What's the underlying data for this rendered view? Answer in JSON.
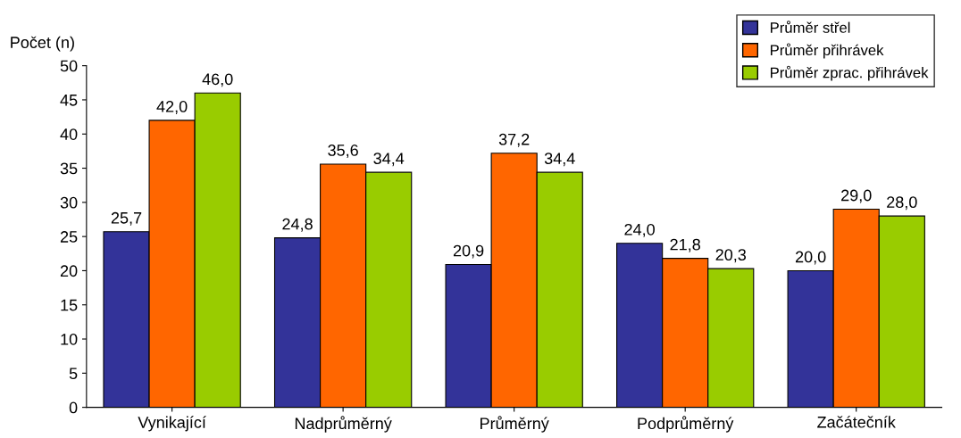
{
  "chart_data": {
    "type": "bar",
    "ylabel": "Počet (n)",
    "categories": [
      "Vynikající",
      "Nadprůměrný",
      "Průměrný",
      "Podprůměrný",
      "Začátečník"
    ],
    "series": [
      {
        "name": "Průměr střel",
        "color": "#333399",
        "values": [
          25.7,
          24.8,
          20.9,
          24.0,
          20.0
        ],
        "value_labels": [
          "25,7",
          "24,8",
          "20,9",
          "24,0",
          "20,0"
        ]
      },
      {
        "name": "Průměr přihrávek",
        "color": "#ff6600",
        "values": [
          42.0,
          35.6,
          37.2,
          21.8,
          29.0
        ],
        "value_labels": [
          "42,0",
          "35,6",
          "37,2",
          "21,8",
          "29,0"
        ]
      },
      {
        "name": "Průměr zprac. přihrávek",
        "color": "#99cc00",
        "values": [
          46.0,
          34.4,
          34.4,
          20.3,
          28.0
        ],
        "value_labels": [
          "46,0",
          "34,4",
          "34,4",
          "20,3",
          "28,0"
        ]
      }
    ],
    "ylim": [
      0,
      50
    ],
    "yticks": [
      0,
      5,
      10,
      15,
      20,
      25,
      30,
      35,
      40,
      45,
      50
    ],
    "grid": false,
    "legend": "top right"
  }
}
